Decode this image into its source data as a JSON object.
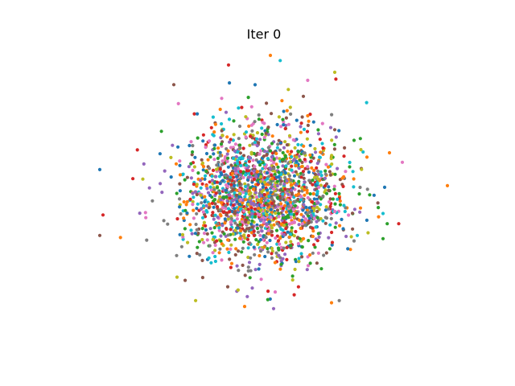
{
  "chart_data": {
    "type": "scatter",
    "title": "Iter 0",
    "xlabel": "",
    "ylabel": "",
    "axes_visible": false,
    "grid": false,
    "legend": "none",
    "xlim": [
      -3.1,
      3.1
    ],
    "ylim": [
      -2.0,
      2.0
    ],
    "series_colors": [
      "#1f77b4",
      "#ff7f0e",
      "#2ca02c",
      "#d62728",
      "#9467bd",
      "#8c564b",
      "#e377c2",
      "#7f7f7f",
      "#bcbd22",
      "#17becf"
    ],
    "distribution": {
      "shape": "isotropic 2D gaussian cloud",
      "center": [
        0.0,
        0.0
      ],
      "std": [
        0.62,
        0.46
      ],
      "points_per_series": 200,
      "seed": 7
    },
    "outliers": [
      {
        "x": 2.85,
        "y": 0.1,
        "series": 1
      },
      {
        "x": 1.85,
        "y": -0.28,
        "series": 9
      },
      {
        "x": 2.15,
        "y": 0.42,
        "series": 6
      },
      {
        "x": 1.95,
        "y": 0.55,
        "series": 1
      },
      {
        "x": -2.55,
        "y": 0.32,
        "series": 0
      },
      {
        "x": -2.5,
        "y": -0.3,
        "series": 3
      },
      {
        "x": -2.55,
        "y": -0.58,
        "series": 5
      },
      {
        "x": -0.55,
        "y": 1.75,
        "series": 3
      },
      {
        "x": -1.4,
        "y": 1.48,
        "series": 5
      },
      {
        "x": 0.1,
        "y": 1.88,
        "series": 1
      },
      {
        "x": 1.1,
        "y": 1.65,
        "series": 8
      },
      {
        "x": 0.68,
        "y": 1.54,
        "series": 6
      },
      {
        "x": 0.15,
        "y": -1.58,
        "series": 4
      },
      {
        "x": -0.3,
        "y": -1.55,
        "series": 1
      },
      {
        "x": -1.35,
        "y": -1.15,
        "series": 8
      },
      {
        "x": 1.05,
        "y": -1.5,
        "series": 1
      },
      {
        "x": 1.45,
        "y": -0.58,
        "series": 9
      },
      {
        "x": 1.4,
        "y": 0.72,
        "series": 2
      }
    ]
  }
}
